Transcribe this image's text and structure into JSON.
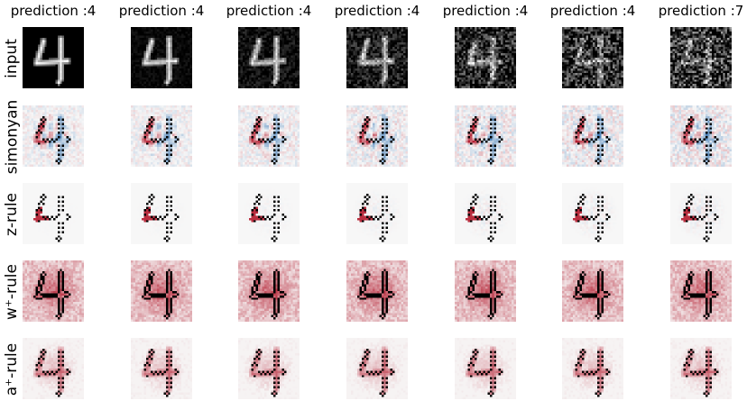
{
  "columns": [
    {
      "title": "prediction :4",
      "noise": 0.0
    },
    {
      "title": "prediction :4",
      "noise": 0.15
    },
    {
      "title": "prediction :4",
      "noise": 0.3
    },
    {
      "title": "prediction :4",
      "noise": 0.5
    },
    {
      "title": "prediction :4",
      "noise": 0.75
    },
    {
      "title": "prediction :4",
      "noise": 0.9
    },
    {
      "title": "prediction :7",
      "noise": 1.0
    }
  ],
  "rows": [
    {
      "label": "input",
      "kind": "input"
    },
    {
      "label": "simonyan",
      "kind": "diverging"
    },
    {
      "label": "z-rule",
      "kind": "sparse"
    },
    {
      "label": "w⁺-rule",
      "kind": "dense"
    },
    {
      "label": "a⁺-rule",
      "kind": "positive"
    }
  ],
  "colors": {
    "positive": "#b2182b",
    "negative": "#2166ac",
    "neutral": "#f7f7f7",
    "outline": "#000000"
  }
}
